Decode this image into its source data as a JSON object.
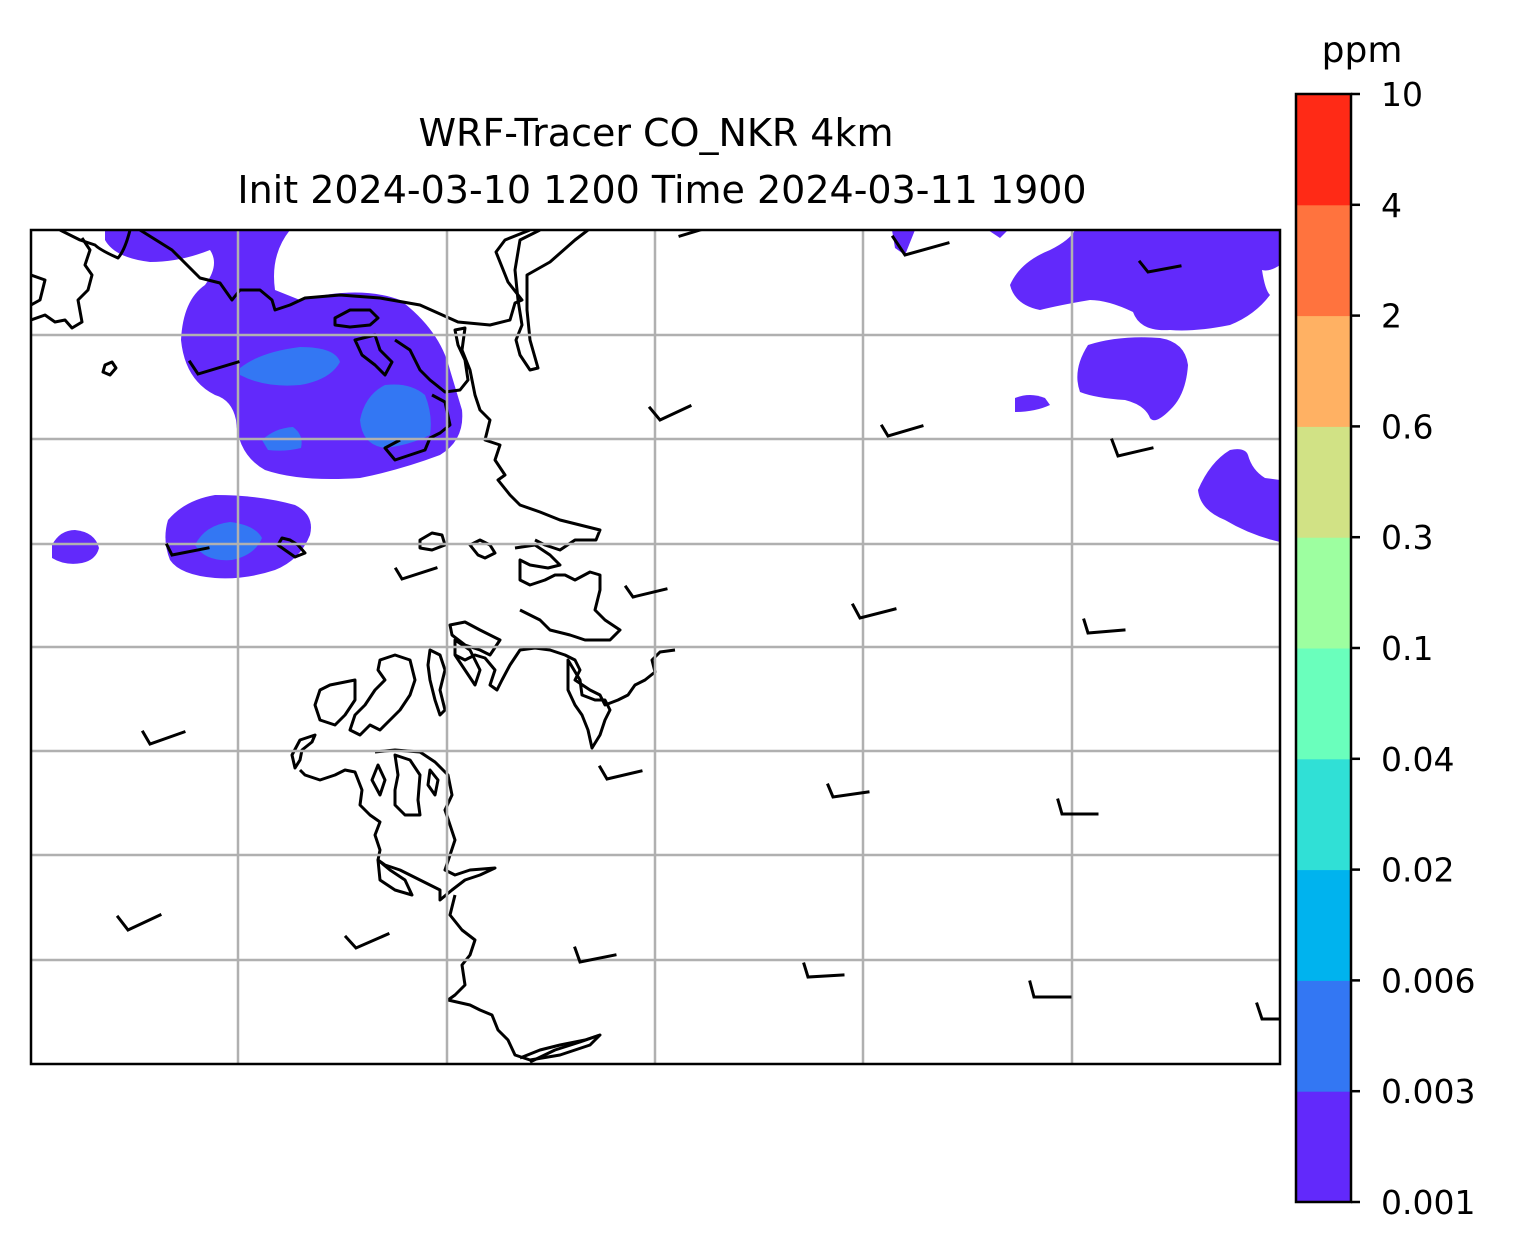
{
  "map": {
    "title_line1": "WRF-Tracer CO_NKR 4km",
    "title_line2": "Init 2024-03-10 1200 Time 2024-03-11 1900",
    "gridlines": true,
    "wind_barbs": true,
    "coastline": true
  },
  "colorbar": {
    "unit": "ppm",
    "levels": [
      "0.001",
      "0.003",
      "0.006",
      "0.02",
      "0.04",
      "0.1",
      "0.3",
      "0.6",
      "2",
      "4",
      "10"
    ],
    "colors": [
      "#6229fb",
      "#3377f3",
      "#00b3ee",
      "#30e0d6",
      "#6affbc",
      "#9dffa0",
      "#d1e285",
      "#ffb163",
      "#ff733e",
      "#ff2a16"
    ]
  }
}
